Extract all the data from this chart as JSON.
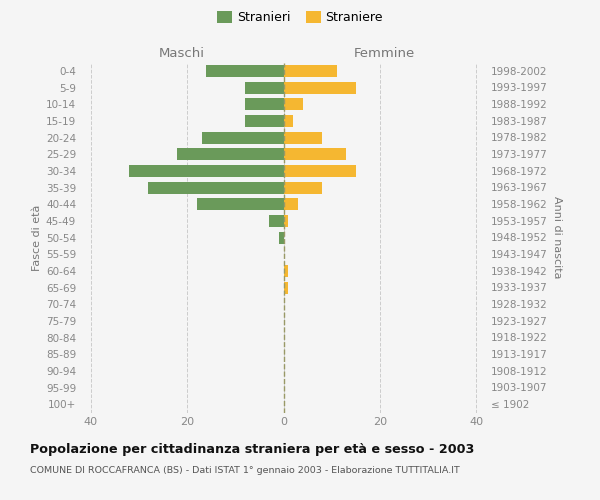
{
  "age_groups": [
    "100+",
    "95-99",
    "90-94",
    "85-89",
    "80-84",
    "75-79",
    "70-74",
    "65-69",
    "60-64",
    "55-59",
    "50-54",
    "45-49",
    "40-44",
    "35-39",
    "30-34",
    "25-29",
    "20-24",
    "15-19",
    "10-14",
    "5-9",
    "0-4"
  ],
  "birth_years": [
    "≤ 1902",
    "1903-1907",
    "1908-1912",
    "1913-1917",
    "1918-1922",
    "1923-1927",
    "1928-1932",
    "1933-1937",
    "1938-1942",
    "1943-1947",
    "1948-1952",
    "1953-1957",
    "1958-1962",
    "1963-1967",
    "1968-1972",
    "1973-1977",
    "1978-1982",
    "1983-1987",
    "1988-1992",
    "1993-1997",
    "1998-2002"
  ],
  "males": [
    0,
    0,
    0,
    0,
    0,
    0,
    0,
    0,
    0,
    0,
    1,
    3,
    18,
    28,
    32,
    22,
    17,
    8,
    8,
    8,
    16
  ],
  "females": [
    0,
    0,
    0,
    0,
    0,
    0,
    0,
    1,
    1,
    0,
    0,
    1,
    3,
    8,
    15,
    13,
    8,
    2,
    4,
    15,
    11
  ],
  "male_color": "#6a9a5a",
  "female_color": "#f5b731",
  "bg_color": "#f5f5f5",
  "title": "Popolazione per cittadinanza straniera per età e sesso - 2003",
  "subtitle": "COMUNE DI ROCCAFRANCA (BS) - Dati ISTAT 1° gennaio 2003 - Elaborazione TUTTITALIA.IT",
  "maschi_label": "Maschi",
  "femmine_label": "Femmine",
  "ylabel_left": "Fasce di età",
  "ylabel_right": "Anni di nascita",
  "legend_male": "Stranieri",
  "legend_female": "Straniere",
  "xlim": 42,
  "grid_color": "#cccccc"
}
